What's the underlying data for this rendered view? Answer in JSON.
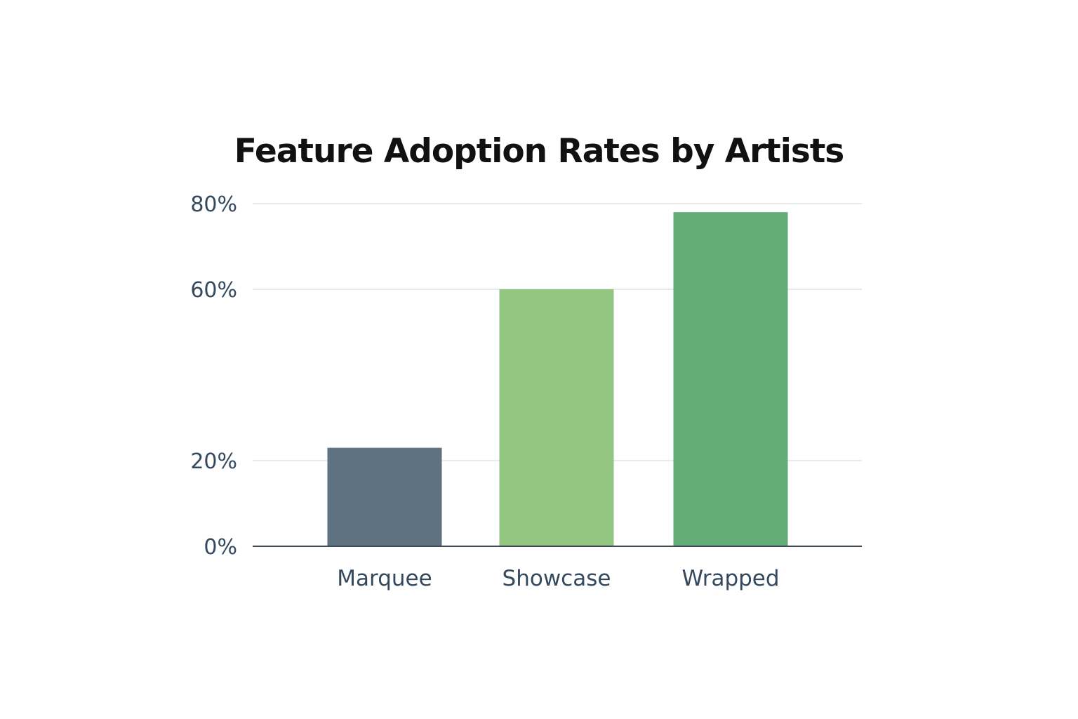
{
  "chart_data": {
    "type": "bar",
    "title": "Feature Adoption Rates by Artists",
    "xlabel": "",
    "ylabel": "",
    "categories": [
      "Marquee",
      "Showcase",
      "Wrapped"
    ],
    "values": [
      23,
      60,
      78
    ],
    "y_ticks": [
      "0%",
      "20%",
      "60%",
      "80%"
    ],
    "y_tick_values": [
      0,
      20,
      60,
      80
    ],
    "ylim": [
      0,
      80
    ],
    "grid": true,
    "legend": "none",
    "colors": [
      "#5f7282",
      "#92c57f",
      "#63ab77"
    ]
  }
}
